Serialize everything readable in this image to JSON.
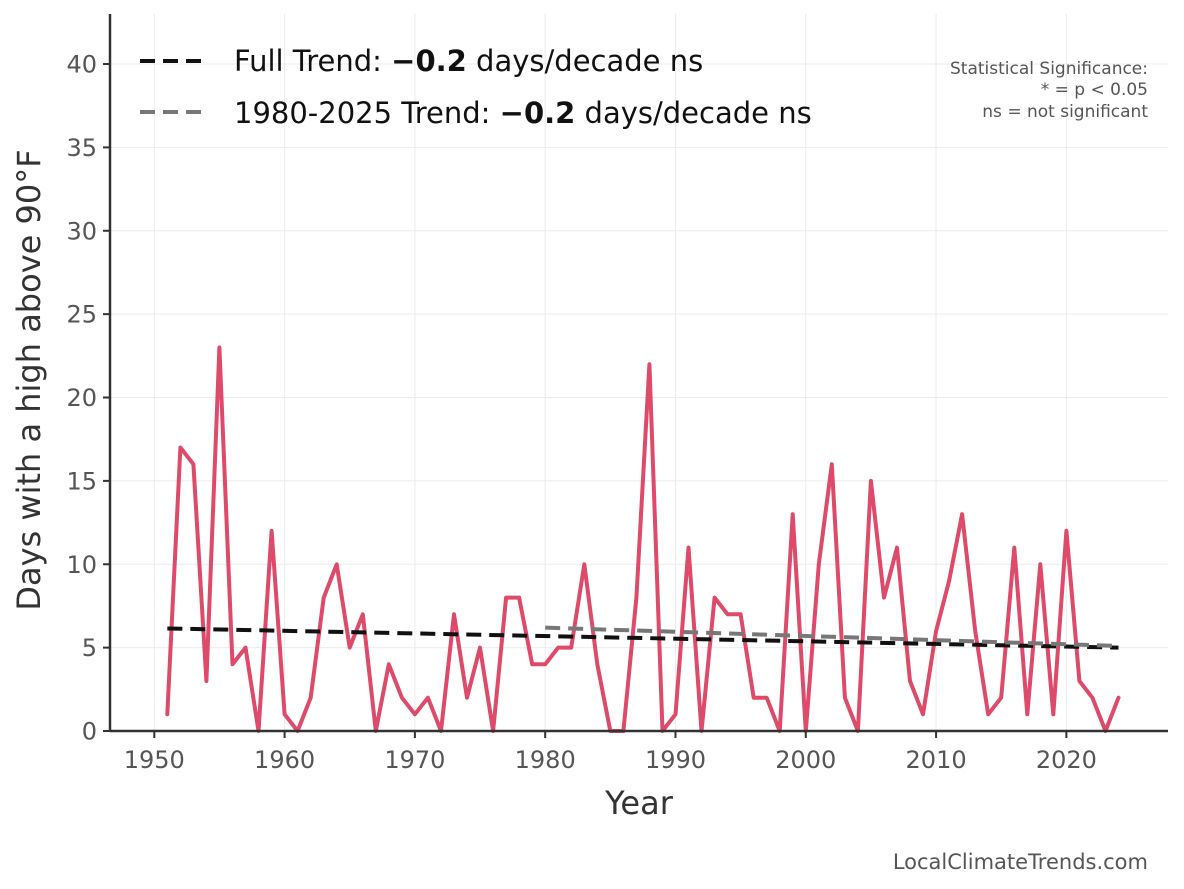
{
  "chart_data": {
    "type": "line",
    "xlabel": "Year",
    "ylabel": "Days with a high above 90°F",
    "xlim": [
      1946.6,
      2027.8
    ],
    "ylim": [
      0,
      43
    ],
    "x_ticks": [
      1950,
      1960,
      1970,
      1980,
      1990,
      2000,
      2010,
      2020
    ],
    "y_ticks": [
      0,
      5,
      10,
      15,
      20,
      25,
      30,
      35,
      40
    ],
    "grid": true,
    "legend_position": "top-left",
    "series": [
      {
        "color": "#dd4a6a",
        "x": [
          1951,
          1952,
          1953,
          1954,
          1955,
          1956,
          1957,
          1958,
          1959,
          1960,
          1961,
          1962,
          1963,
          1964,
          1965,
          1966,
          1967,
          1968,
          1969,
          1970,
          1971,
          1972,
          1973,
          1974,
          1975,
          1976,
          1977,
          1978,
          1979,
          1980,
          1981,
          1982,
          1983,
          1984,
          1985,
          1986,
          1987,
          1988,
          1989,
          1990,
          1991,
          1992,
          1993,
          1994,
          1995,
          1996,
          1997,
          1998,
          1999,
          2000,
          2001,
          2002,
          2003,
          2004,
          2005,
          2006,
          2007,
          2008,
          2009,
          2010,
          2011,
          2012,
          2013,
          2014,
          2015,
          2016,
          2017,
          2018,
          2019,
          2020,
          2021,
          2022,
          2023,
          2024
        ],
        "values": [
          1,
          17,
          16,
          3,
          23,
          4,
          5,
          0,
          12,
          1,
          0,
          2,
          8,
          10,
          5,
          7,
          0,
          4,
          2,
          1,
          2,
          0,
          7,
          2,
          5,
          0,
          8,
          8,
          4,
          4,
          5,
          5,
          10,
          4,
          0,
          0,
          8,
          22,
          0,
          1,
          11,
          0,
          8,
          7,
          7,
          2,
          2,
          0,
          13,
          0,
          10,
          16,
          2,
          0,
          15,
          8,
          11,
          3,
          1,
          6,
          9,
          13,
          6,
          1,
          2,
          11,
          1,
          10,
          1,
          12,
          3,
          2,
          0,
          2
        ]
      }
    ],
    "trend_lines": [
      {
        "name": "Full Trend",
        "color": "#111111",
        "x": [
          1951,
          2024
        ],
        "values": [
          6.15,
          5.0
        ]
      },
      {
        "name": "1980-2025 Trend",
        "color": "#777777",
        "x": [
          1980,
          2024
        ],
        "values": [
          6.2,
          5.1
        ]
      }
    ],
    "legend": [
      {
        "prefix": "Full Trend: ",
        "value": "−0.2",
        "suffix": " days/decade ns",
        "color": "#111111"
      },
      {
        "prefix": "1980-2025 Trend: ",
        "value": "−0.2",
        "suffix": " days/decade ns",
        "color": "#777777"
      }
    ],
    "annotations": {
      "significance_title": "Statistical Significance:",
      "significance_line1": "* = p < 0.05",
      "significance_line2": "ns = not significant"
    }
  },
  "footer": "LocalClimateTrends.com"
}
